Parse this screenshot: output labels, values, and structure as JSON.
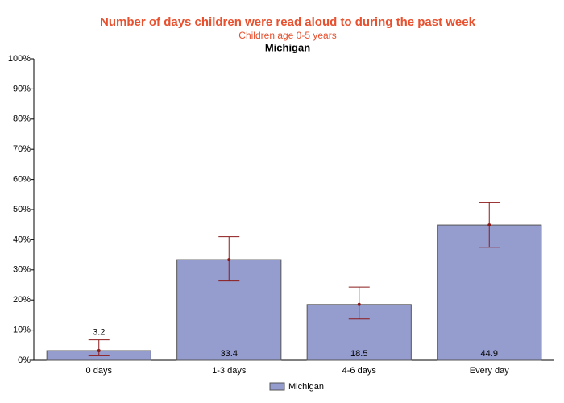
{
  "chart_data": {
    "type": "bar",
    "title": "Number of days children were read aloud to during the past week",
    "subtitle": "Children age 0-5 years",
    "region_title": "Michigan",
    "categories": [
      "0 days",
      "1-3 days",
      "4-6 days",
      "Every day"
    ],
    "series": [
      {
        "name": "Michigan",
        "color": "#959cce",
        "values": [
          3.2,
          33.4,
          18.5,
          44.9
        ],
        "ci_low": [
          1.5,
          26.3,
          13.7,
          37.5
        ],
        "ci_high": [
          6.8,
          41.0,
          24.3,
          52.3
        ]
      }
    ],
    "error_color": "#8b1a1a",
    "ylim": [
      0,
      100
    ],
    "yticks": [
      {
        "value": 0,
        "label": "0%"
      },
      {
        "value": 10,
        "label": "10%"
      },
      {
        "value": 20,
        "label": "20%"
      },
      {
        "value": 30,
        "label": "30%"
      },
      {
        "value": 40,
        "label": "40%"
      },
      {
        "value": 50,
        "label": "50%"
      },
      {
        "value": 60,
        "label": "60%"
      },
      {
        "value": 70,
        "label": "70%"
      },
      {
        "value": 80,
        "label": "80%"
      },
      {
        "value": 90,
        "label": "90%"
      },
      {
        "value": 100,
        "label": "100%"
      }
    ],
    "legend": "bottom"
  }
}
